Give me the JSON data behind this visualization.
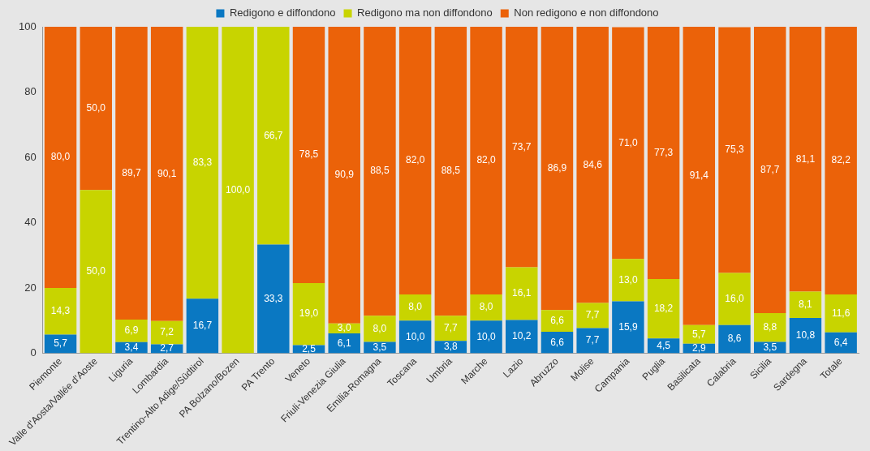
{
  "chart_data": {
    "type": "bar",
    "stacked": true,
    "legend": "top",
    "grid": false,
    "categories": [
      "Piemonte",
      "Valle d'Aosta/Vallée d'Aoste",
      "Liguria",
      "Lombardia",
      "Trentino-Alto Adige/Südtirol",
      "PA Bolzano/Bozen",
      "PA Trento",
      "Veneto",
      "Friuli-Venezia Giulia",
      "Emilia-Romagna",
      "Toscana",
      "Umbria",
      "Marche",
      "Lazio",
      "Abruzzo",
      "Molise",
      "Campania",
      "Puglia",
      "Basilicata",
      "Calabria",
      "Sicilia",
      "Sardegna",
      "Totale"
    ],
    "ylim": [
      0,
      100
    ],
    "yticks": [
      0,
      20,
      40,
      60,
      80,
      100
    ],
    "series": [
      {
        "name": "Redigono e diffondono",
        "color": "#0a78c2",
        "values": [
          5.7,
          null,
          3.4,
          2.7,
          16.7,
          null,
          33.3,
          2.5,
          6.1,
          3.5,
          10.0,
          3.8,
          10.0,
          10.2,
          6.6,
          7.7,
          15.9,
          4.5,
          2.9,
          8.6,
          3.5,
          10.8,
          6.4
        ],
        "value_labels": [
          "5,7",
          null,
          "3,4",
          "2,7",
          "16,7",
          null,
          "33,3",
          "2,5",
          "6,1",
          "3,5",
          "10,0",
          "3,8",
          "10,0",
          "10,2",
          "6,6",
          "7,7",
          "15,9",
          "4,5",
          "2,9",
          "8,6",
          "3,5",
          "10,8",
          "6,4"
        ]
      },
      {
        "name": "Redigono ma non diffondono",
        "color": "#c8d400",
        "values": [
          14.3,
          50.0,
          6.9,
          7.2,
          83.3,
          100.0,
          66.7,
          19.0,
          3.0,
          8.0,
          8.0,
          7.7,
          8.0,
          16.1,
          6.6,
          7.7,
          13.0,
          18.2,
          5.7,
          16.0,
          8.8,
          8.1,
          11.6
        ],
        "value_labels": [
          "14,3",
          "50,0",
          "6,9",
          "7,2",
          "83,3",
          "100,0",
          "66,7",
          "19,0",
          "3,0",
          "8,0",
          "8,0",
          "7,7",
          "8,0",
          "16,1",
          "6,6",
          "7,7",
          "13,0",
          "18,2",
          "5,7",
          "16,0",
          "8,8",
          "8,1",
          "11,6"
        ]
      },
      {
        "name": "Non redigono e non diffondono",
        "color": "#eb6209",
        "values": [
          80.0,
          50.0,
          89.7,
          90.1,
          null,
          null,
          null,
          78.5,
          90.9,
          88.5,
          82.0,
          88.5,
          82.0,
          73.7,
          86.9,
          84.6,
          71.0,
          77.3,
          91.4,
          75.3,
          87.7,
          81.1,
          82.2
        ],
        "value_labels": [
          "80,0",
          "50,0",
          "89,7",
          "90,1",
          null,
          null,
          null,
          "78,5",
          "90,9",
          "88,5",
          "82,0",
          "88,5",
          "82,0",
          "73,7",
          "86,9",
          "84,6",
          "71,0",
          "77,3",
          "91,4",
          "75,3",
          "87,7",
          "81,1",
          "82,2"
        ]
      }
    ]
  }
}
